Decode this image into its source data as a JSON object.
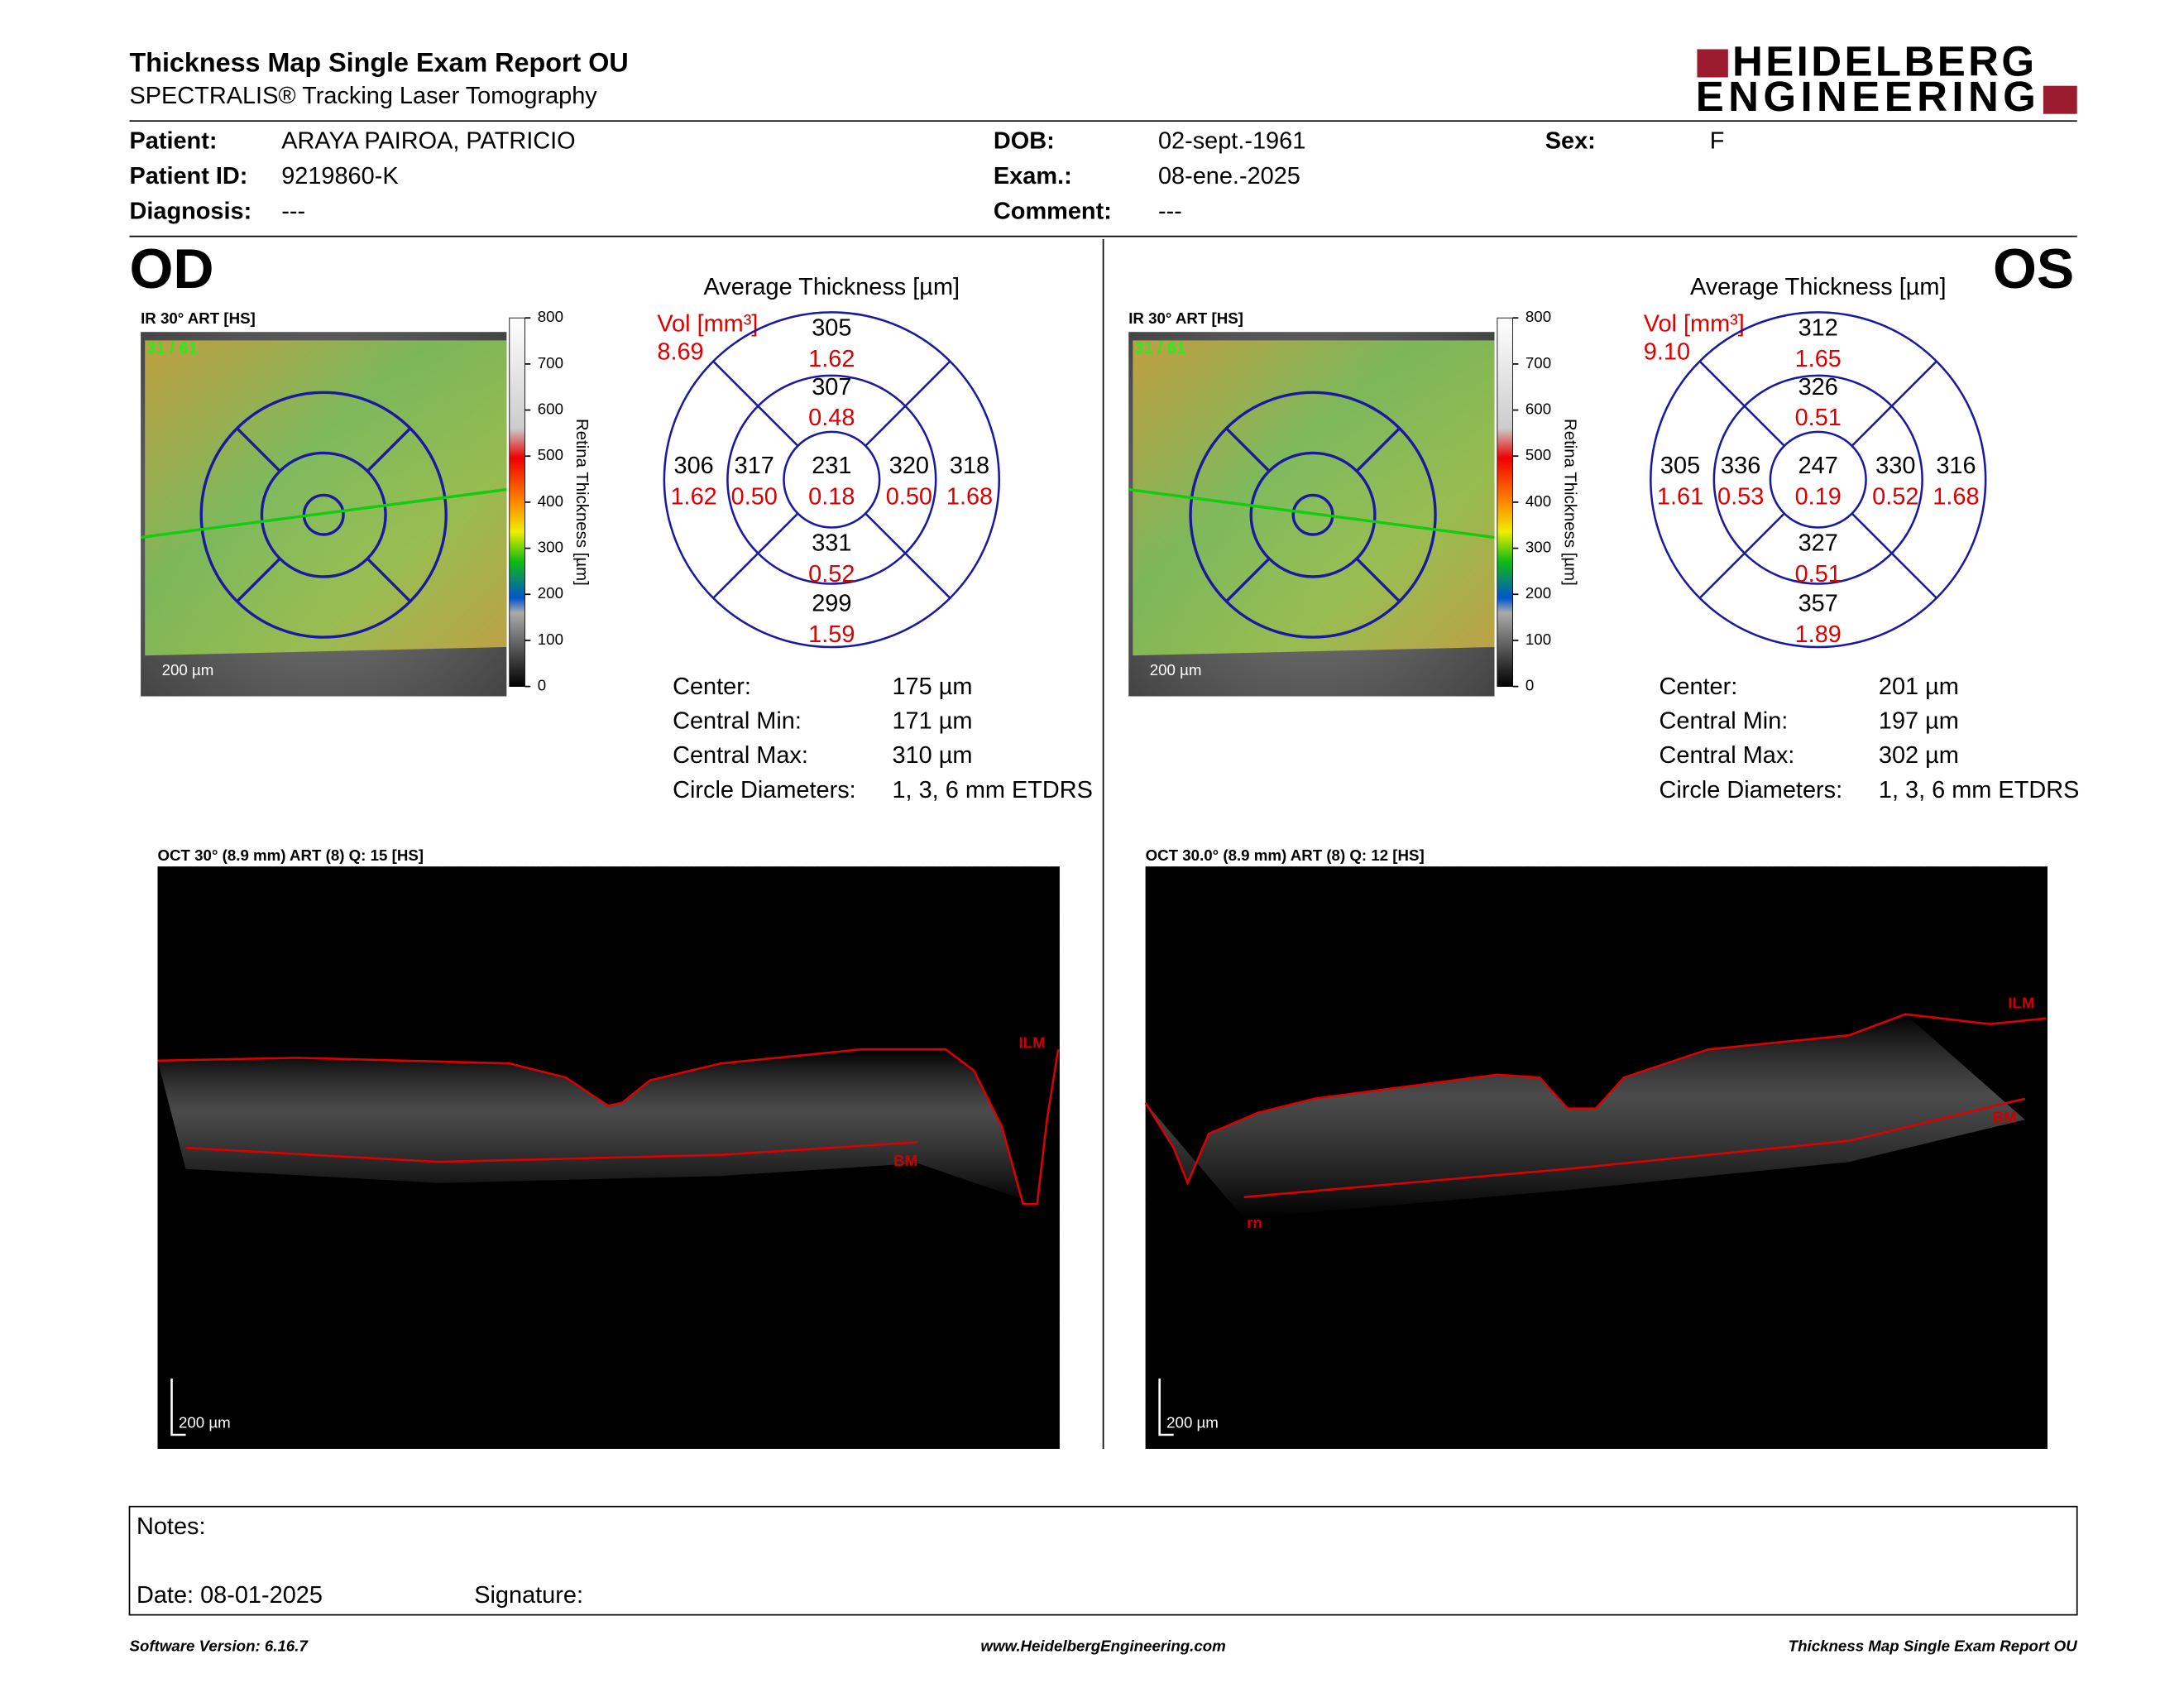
{
  "header": {
    "title": "Thickness Map Single Exam Report OU",
    "subtitle": "SPECTRALIS® Tracking Laser Tomography",
    "logo": [
      "HEIDELBERG",
      "ENGINEERING"
    ]
  },
  "patient": [
    {
      "label": "Patient:",
      "value": "ARAYA PAIROA, PATRICIO"
    },
    {
      "label": "Patient ID:",
      "value": "9219860-K"
    },
    {
      "label": "Diagnosis:",
      "value": "---"
    },
    {
      "label": "DOB:",
      "value": "02-sept.-1961"
    },
    {
      "label": "Exam.:",
      "value": "08-ene.-2025"
    },
    {
      "label": "Comment:",
      "value": "---"
    },
    {
      "label": "Sex:",
      "value": "F"
    }
  ],
  "eyes": [
    {
      "label": "OD",
      "ir_title": "IR 30° ART [HS]",
      "frame": "31 / 61",
      "ir_scale": "200 µm",
      "colorbar_ticks": [
        "800",
        "700",
        "600",
        "500",
        "400",
        "300",
        "200",
        "100",
        "0"
      ],
      "colorbar_label": "Retina Thickness [µm]",
      "avg_title": "Average Thickness [µm]",
      "vol_label": "Vol [mm³]",
      "vol_value": "8.69",
      "sectors": [
        {
          "thickness": "305",
          "volume": "1.62"
        },
        {
          "thickness": "307",
          "volume": "0.48"
        },
        {
          "thickness": "306",
          "volume": "1.62"
        },
        {
          "thickness": "317",
          "volume": "0.50"
        },
        {
          "thickness": "231",
          "volume": "0.18"
        },
        {
          "thickness": "320",
          "volume": "0.50"
        },
        {
          "thickness": "318",
          "volume": "1.68"
        },
        {
          "thickness": "331",
          "volume": "0.52"
        },
        {
          "thickness": "299",
          "volume": "1.59"
        }
      ],
      "stats": [
        {
          "label": "Center:",
          "value": "175 µm"
        },
        {
          "label": "Central Min:",
          "value": "171 µm"
        },
        {
          "label": "Central Max:",
          "value": "310 µm"
        },
        {
          "label": "Circle Diameters:",
          "value": "1, 3, 6 mm ETDRS"
        }
      ],
      "oct_title": "OCT 30° (8.9 mm) ART (8) Q: 15 [HS]",
      "oct_scale": "200 µm",
      "oct_labels": [
        "ILM",
        "BM"
      ]
    },
    {
      "label": "OS",
      "ir_title": "IR 30° ART [HS]",
      "frame": "31 / 61",
      "ir_scale": "200 µm",
      "colorbar_ticks": [
        "800",
        "700",
        "600",
        "500",
        "400",
        "300",
        "200",
        "100",
        "0"
      ],
      "colorbar_label": "Retina Thickness [µm]",
      "avg_title": "Average Thickness [µm]",
      "vol_label": "Vol [mm³]",
      "vol_value": "9.10",
      "sectors": [
        {
          "thickness": "312",
          "volume": "1.65"
        },
        {
          "thickness": "326",
          "volume": "0.51"
        },
        {
          "thickness": "305",
          "volume": "1.61"
        },
        {
          "thickness": "336",
          "volume": "0.53"
        },
        {
          "thickness": "247",
          "volume": "0.19"
        },
        {
          "thickness": "330",
          "volume": "0.52"
        },
        {
          "thickness": "316",
          "volume": "1.68"
        },
        {
          "thickness": "327",
          "volume": "0.51"
        },
        {
          "thickness": "357",
          "volume": "1.89"
        }
      ],
      "stats": [
        {
          "label": "Center:",
          "value": "201 µm"
        },
        {
          "label": "Central Min:",
          "value": "197 µm"
        },
        {
          "label": "Central Max:",
          "value": "302 µm"
        },
        {
          "label": "Circle Diameters:",
          "value": "1, 3, 6 mm ETDRS"
        }
      ],
      "oct_title": "OCT 30.0° (8.9 mm) ART (8) Q: 12 [HS]",
      "oct_scale": "200 µm",
      "oct_labels": [
        "ILM",
        "BM",
        "rn"
      ]
    }
  ],
  "notes": {
    "label": "Notes:",
    "date": "Date: 08-01-2025",
    "signature": "Signature:"
  },
  "footer": {
    "left": "Software Version: 6.16.7",
    "center": "www.HeidelbergEngineering.com",
    "right": "Thickness Map Single Exam Report OU"
  }
}
